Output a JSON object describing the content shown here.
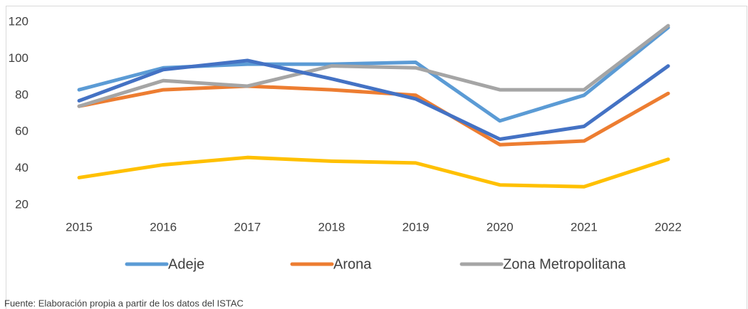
{
  "chart_data": {
    "type": "line",
    "categories": [
      "2015",
      "2016",
      "2017",
      "2018",
      "2019",
      "2020",
      "2021",
      "2022"
    ],
    "series": [
      {
        "name": "Adeje",
        "color": "#5b9bd5",
        "values": [
          83,
          95,
          97,
          97,
          98,
          66,
          80,
          117
        ]
      },
      {
        "name": "Arona",
        "color": "#ed7d31",
        "values": [
          74,
          83,
          85,
          83,
          80,
          53,
          55,
          81
        ]
      },
      {
        "name": "Zona Metropolitana",
        "color": "#a5a5a5",
        "values": [
          74,
          88,
          85,
          96,
          95,
          83,
          83,
          118
        ]
      },
      {
        "color": "#4472c4",
        "values": [
          77,
          94,
          99,
          89,
          78,
          56,
          63,
          96
        ]
      },
      {
        "color": "#ffc000",
        "values": [
          35,
          42,
          46,
          44,
          43,
          31,
          30,
          45
        ]
      }
    ],
    "ylim": [
      20,
      120
    ],
    "yticks": [
      20,
      40,
      60,
      80,
      100,
      120
    ],
    "grid": false,
    "source": "Fuente: Elaboración propia a partir de los datos del ISTAC"
  }
}
